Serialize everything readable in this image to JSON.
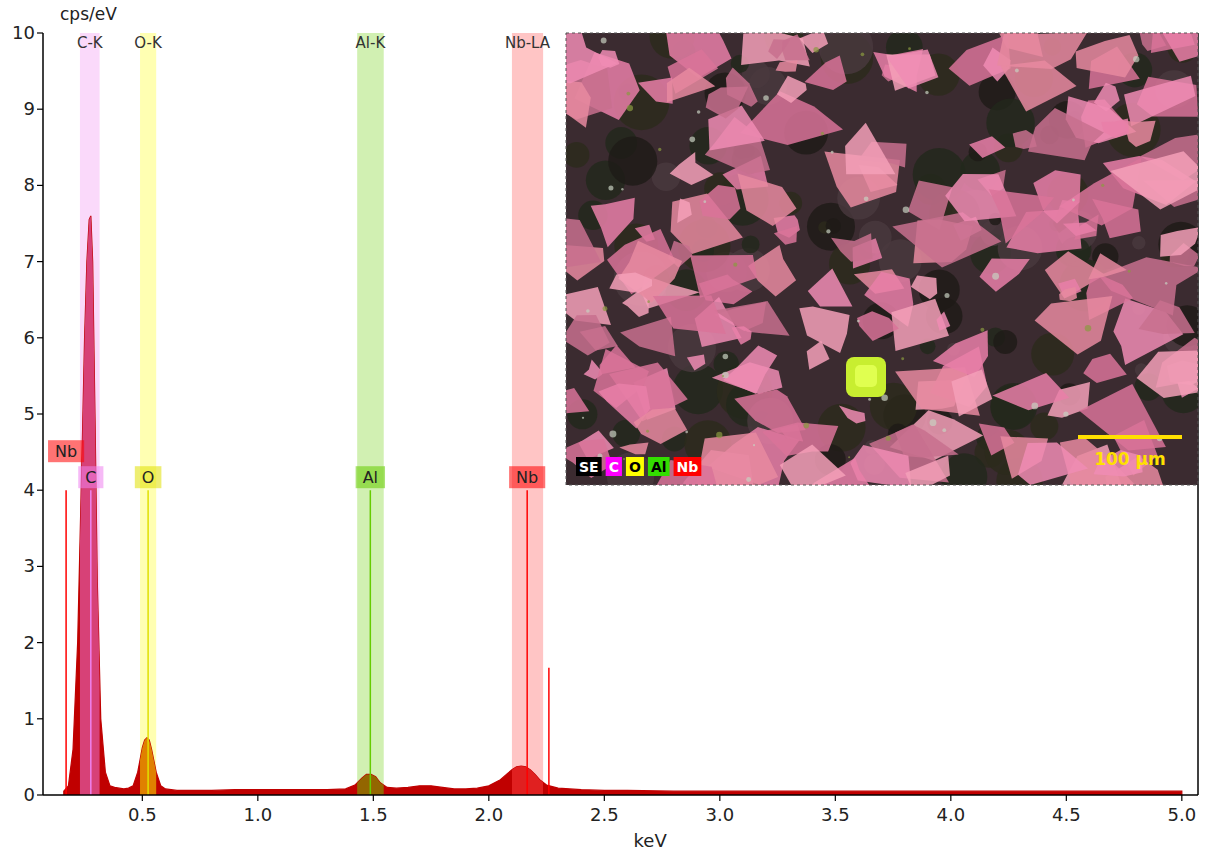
{
  "chart_data": {
    "type": "line",
    "y_label": "cps/eV",
    "x_label": "keV",
    "xlim": [
      0.07,
      5.07
    ],
    "ylim": [
      0,
      10
    ],
    "xticks": [
      0.5,
      {
        "value": 1,
        "label": "1.0"
      },
      1.5,
      {
        "value": 2,
        "label": "2.0"
      },
      2.5,
      {
        "value": 3,
        "label": "3.0"
      },
      3.5,
      {
        "value": 4,
        "label": "4.0"
      },
      4.5,
      {
        "value": 5,
        "label": "5.0"
      }
    ],
    "yticks": [
      0,
      1,
      2,
      3,
      4,
      5,
      6,
      7,
      8,
      9,
      10
    ],
    "grid": false,
    "color": "#c00000",
    "x": [
      0.16,
      0.18,
      0.2,
      0.22,
      0.24,
      0.25,
      0.26,
      0.27,
      0.277,
      0.285,
      0.295,
      0.305,
      0.32,
      0.34,
      0.36,
      0.38,
      0.4,
      0.42,
      0.44,
      0.46,
      0.48,
      0.5,
      0.51,
      0.52,
      0.53,
      0.54,
      0.56,
      0.58,
      0.6,
      0.65,
      0.7,
      0.8,
      0.9,
      1.0,
      1.1,
      1.2,
      1.3,
      1.38,
      1.42,
      1.45,
      1.47,
      1.49,
      1.51,
      1.53,
      1.56,
      1.6,
      1.65,
      1.7,
      1.75,
      1.8,
      1.85,
      1.9,
      1.95,
      2.0,
      2.05,
      2.08,
      2.1,
      2.12,
      2.14,
      2.16,
      2.18,
      2.2,
      2.22,
      2.25,
      2.3,
      2.4,
      2.5,
      2.6,
      2.8,
      3.0,
      3.2,
      3.4,
      3.6,
      3.8,
      4.0,
      4.2,
      4.4,
      4.6,
      4.8,
      5.0
    ],
    "values": [
      0.05,
      0.12,
      0.6,
      2.0,
      4.6,
      6.0,
      7.0,
      7.55,
      7.6,
      7.0,
      5.0,
      2.8,
      1.0,
      0.3,
      0.12,
      0.1,
      0.09,
      0.08,
      0.09,
      0.12,
      0.3,
      0.62,
      0.72,
      0.75,
      0.72,
      0.6,
      0.3,
      0.12,
      0.08,
      0.06,
      0.06,
      0.06,
      0.07,
      0.07,
      0.07,
      0.07,
      0.07,
      0.08,
      0.13,
      0.22,
      0.27,
      0.27,
      0.24,
      0.16,
      0.1,
      0.09,
      0.1,
      0.12,
      0.12,
      0.1,
      0.08,
      0.08,
      0.09,
      0.12,
      0.2,
      0.28,
      0.33,
      0.37,
      0.38,
      0.37,
      0.33,
      0.27,
      0.2,
      0.13,
      0.09,
      0.07,
      0.06,
      0.06,
      0.05,
      0.05,
      0.05,
      0.05,
      0.05,
      0.05,
      0.05,
      0.05,
      0.05,
      0.05,
      0.05,
      0.05
    ],
    "elements": [
      {
        "label": "C-K",
        "band": [
          0.23,
          0.315
        ],
        "color": "#ee82ee"
      },
      {
        "label": "O-K",
        "band": [
          0.49,
          0.56
        ],
        "color": "#ffff00"
      },
      {
        "label": "Al-K",
        "band": [
          1.43,
          1.545
        ],
        "color": "#66cc00"
      },
      {
        "label": "Nb-LA",
        "band": [
          2.1,
          2.235
        ],
        "color": "#ff4040"
      }
    ],
    "markers": [
      {
        "label": "C",
        "energy": 0.277,
        "height": 4.0,
        "color": "#ee82ee"
      },
      {
        "label": "O",
        "energy": 0.525,
        "height": 4.0,
        "color": "#e0e000"
      },
      {
        "label": "Al",
        "energy": 1.487,
        "height": 4.0,
        "color": "#66cc00"
      },
      {
        "label": "Nb",
        "energy": 2.166,
        "height": 4.0,
        "color": "#ff0000"
      },
      {
        "label": "Nb",
        "energy": 0.17,
        "height": 4.0,
        "color": "#ff0000"
      },
      {
        "label": null,
        "energy": 2.26,
        "height": 1.67,
        "color": "#ff0000"
      }
    ],
    "map": {
      "legend": [
        {
          "label": "SE",
          "color": "#000000"
        },
        {
          "label": "C",
          "color": "#ff00ff"
        },
        {
          "label": "O",
          "color": "#ffff00"
        },
        {
          "label": "Al",
          "color": "#33dd00"
        },
        {
          "label": "Nb",
          "color": "#ff0000"
        }
      ],
      "scale_bar": "100 µm"
    }
  }
}
